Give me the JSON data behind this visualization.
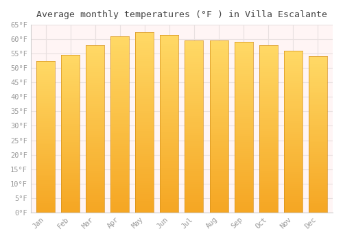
{
  "title": "Average monthly temperatures (°F ) in Villa Escalante",
  "months": [
    "Jan",
    "Feb",
    "Mar",
    "Apr",
    "May",
    "Jun",
    "Jul",
    "Aug",
    "Sep",
    "Oct",
    "Nov",
    "Dec"
  ],
  "temperatures": [
    52.5,
    54.5,
    58.0,
    61.0,
    62.5,
    61.5,
    59.5,
    59.5,
    59.0,
    58.0,
    56.0,
    54.0
  ],
  "bar_color_bottom": "#F5A623",
  "bar_color_top": "#FFD966",
  "bar_edge_color": "#D4901A",
  "background_color": "#FFFFFF",
  "plot_bg_color": "#FFF5F5",
  "grid_color": "#E8E0E0",
  "tick_label_color": "#999999",
  "title_color": "#444444",
  "ylim": [
    0,
    65
  ],
  "ytick_step": 5,
  "title_fontsize": 9.5,
  "tick_fontsize": 7.5,
  "bar_width": 0.75
}
